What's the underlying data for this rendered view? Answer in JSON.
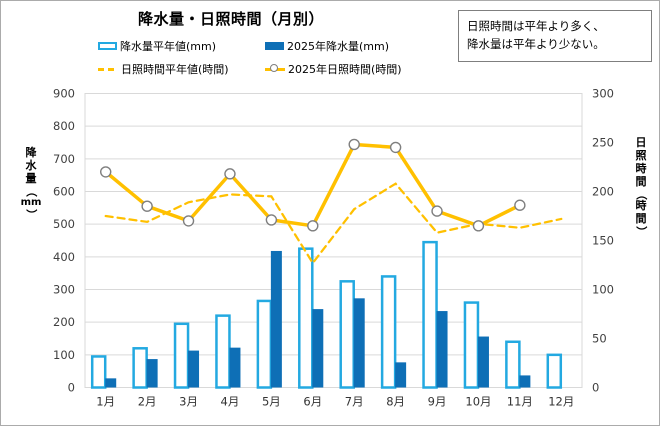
{
  "title": "降水量・日照時間（月別）",
  "annotation": {
    "line1": "日照時間は平年より多く、",
    "line2": "降水量は平年より少ない。"
  },
  "legend": {
    "items": [
      {
        "label": "降水量平年値(mm)",
        "swatch": "outlined-bar"
      },
      {
        "label": "2025年降水量(mm)",
        "swatch": "solid-bar"
      },
      {
        "label": "日照時間平年値(時間)",
        "swatch": "dashed-line"
      },
      {
        "label": "2025年日照時間(時間)",
        "swatch": "line-with-circle-marker"
      }
    ]
  },
  "colors": {
    "bar_outline": "#23a9e1",
    "bar_fill": "#0e6fb6",
    "line_gold": "#ffc000",
    "marker_ring": "#7f7f7f",
    "gridline": "#d9d9d9",
    "axis_text": "#404040"
  },
  "chart_data": {
    "type": "combo: clustered bar + line, dual y-axes",
    "title": "降水量・日照時間（月別）",
    "categories": [
      "1月",
      "2月",
      "3月",
      "4月",
      "5月",
      "6月",
      "7月",
      "8月",
      "9月",
      "10月",
      "11月",
      "12月"
    ],
    "series": [
      {
        "name": "降水量平年値(mm)",
        "type": "bar",
        "style": "outlined",
        "axis": "left",
        "values": [
          95,
          120,
          195,
          220,
          265,
          425,
          325,
          340,
          445,
          260,
          140,
          100
        ]
      },
      {
        "name": "2025年降水量(mm)",
        "type": "bar",
        "style": "solid",
        "axis": "left",
        "values": [
          28,
          87,
          113,
          122,
          418,
          240,
          273,
          77,
          234,
          156,
          37,
          null
        ]
      },
      {
        "name": "日照時間平年値(時間)",
        "type": "line",
        "style": "dashed",
        "axis": "right",
        "values": [
          175,
          169,
          189,
          197,
          195,
          127,
          182,
          208,
          158,
          167,
          163,
          172
        ]
      },
      {
        "name": "2025年日照時間(時間)",
        "type": "line",
        "style": "solid-with-markers",
        "axis": "right",
        "values": [
          220,
          185,
          170,
          218,
          171,
          165,
          248,
          245,
          180,
          165,
          186,
          null
        ]
      }
    ],
    "left_axis": {
      "label": "降水量（mm）",
      "min": 0,
      "max": 900,
      "step": 100
    },
    "right_axis": {
      "label": "日照時間（時間）",
      "min": 0,
      "max": 300,
      "step": 50
    },
    "grid": "horizontal gridlines on, plot area framed",
    "legend_position": "top"
  }
}
